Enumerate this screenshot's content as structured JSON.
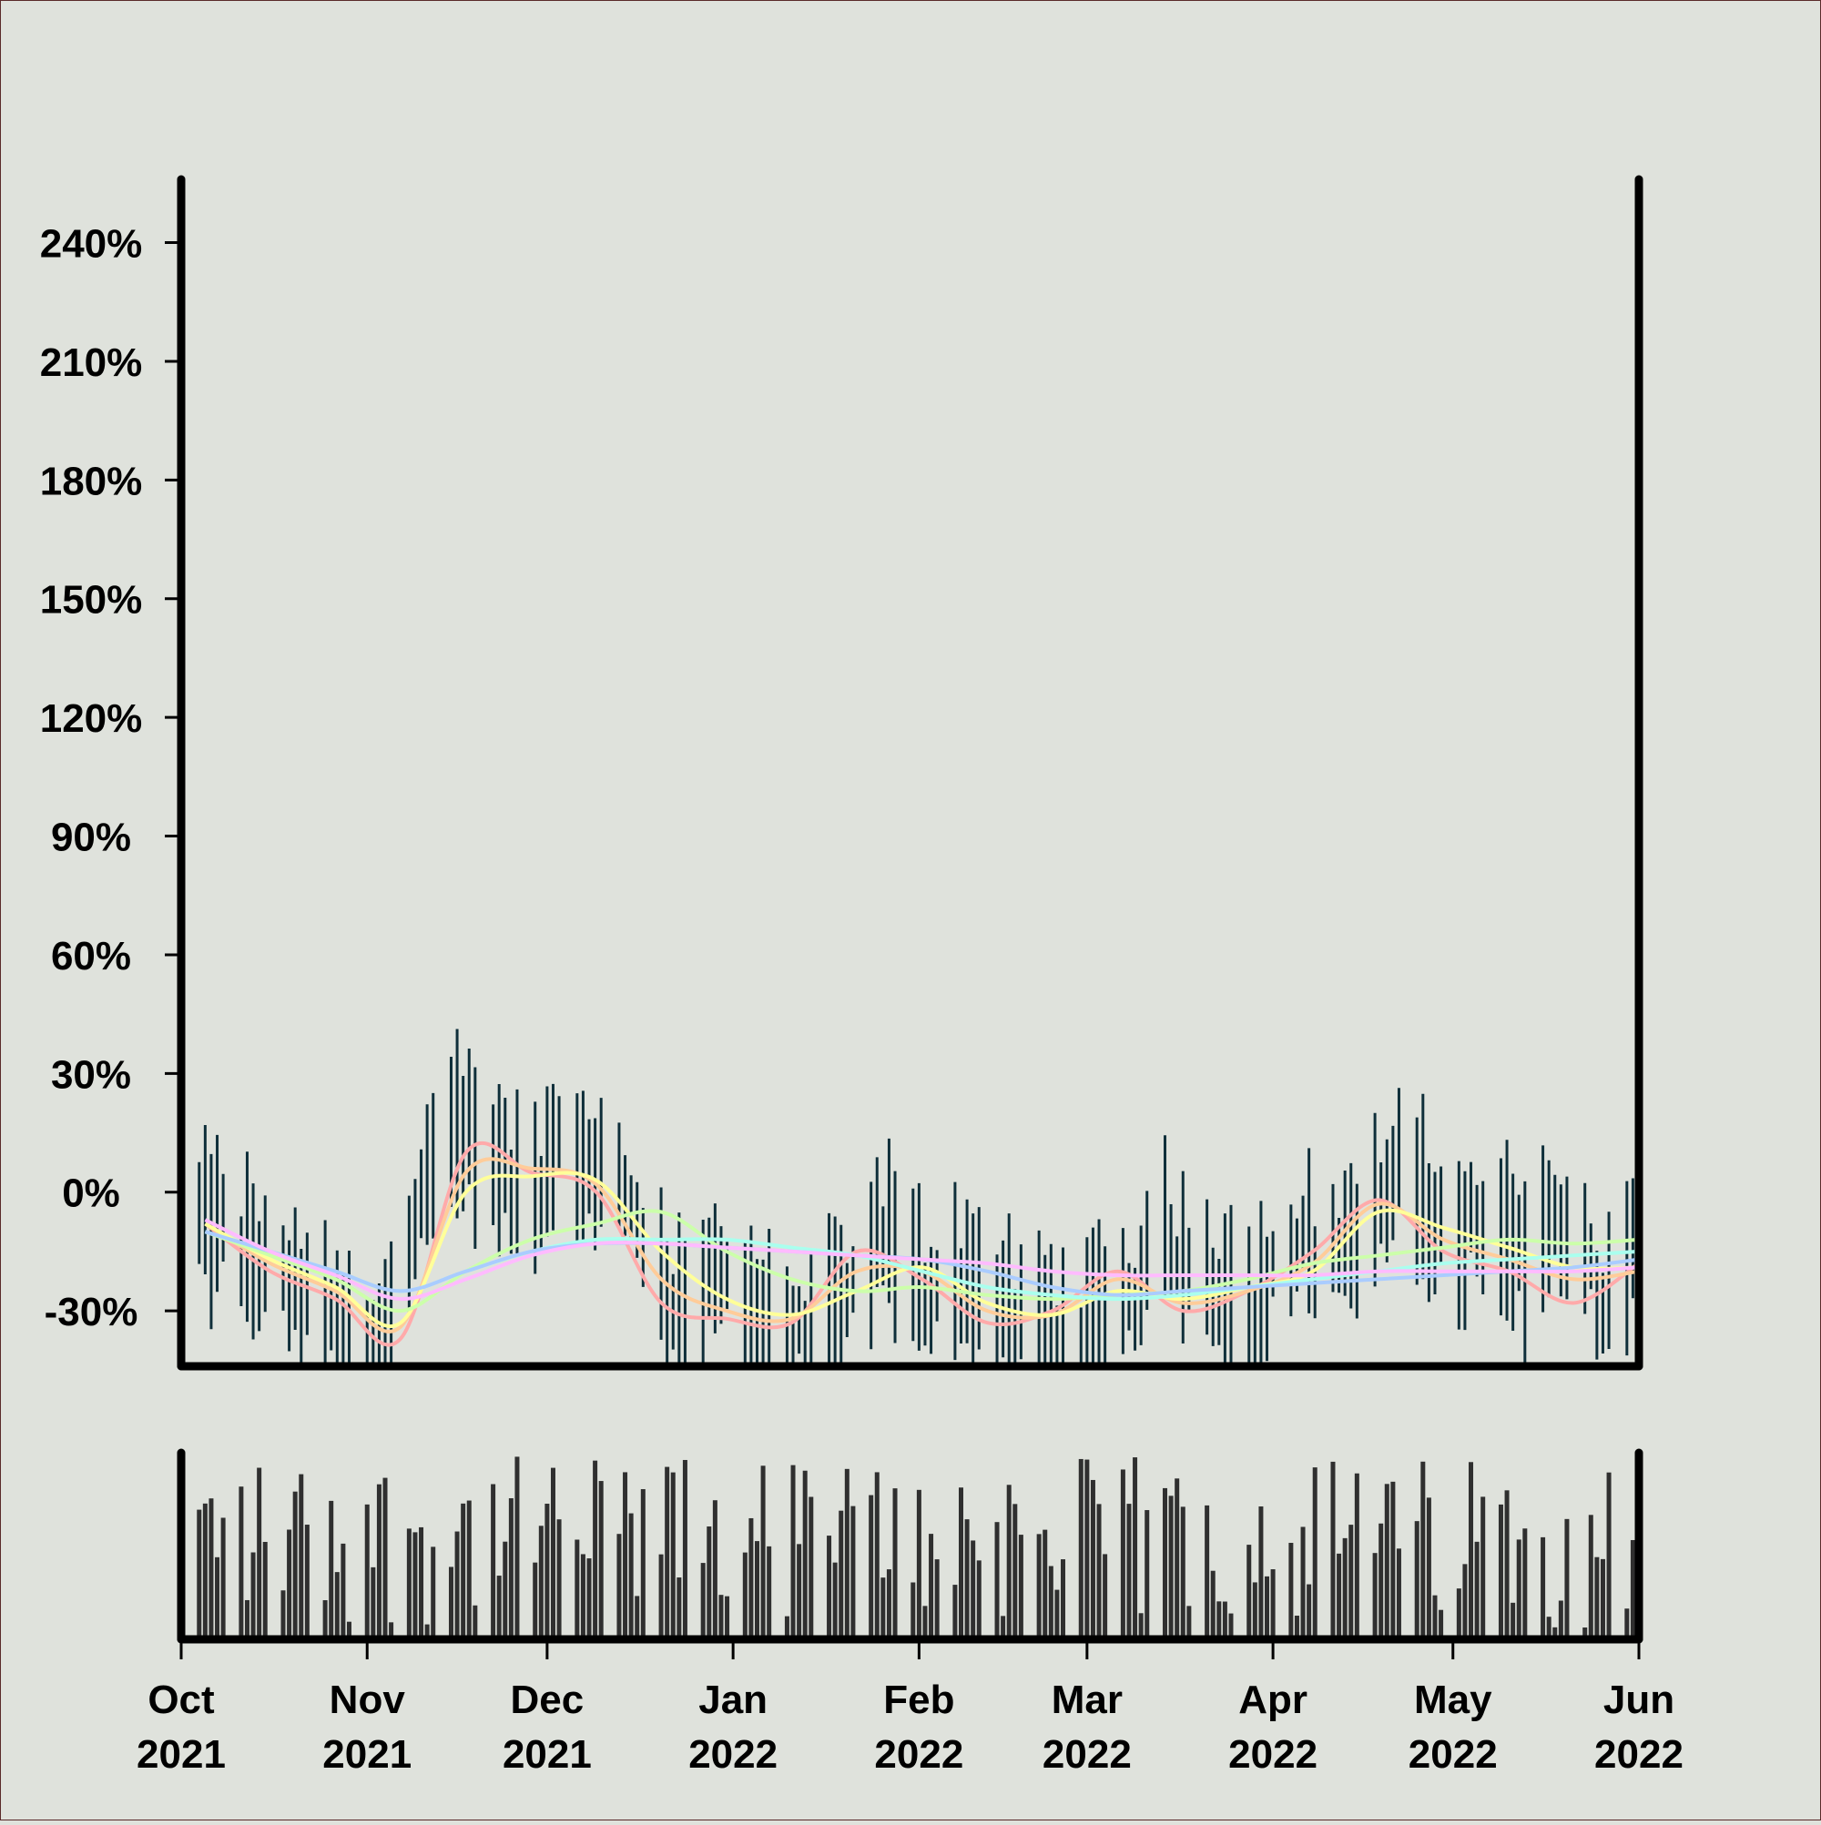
{
  "chart_data": {
    "type": "line",
    "title": "",
    "xlabel": "",
    "ylabel": "",
    "x_range": [
      "2021-10-01",
      "2022-06-01"
    ],
    "x_ticks": [
      {
        "date": "2021-10-01",
        "month": "Oct",
        "year": "2021"
      },
      {
        "date": "2021-11-01",
        "month": "Nov",
        "year": "2021"
      },
      {
        "date": "2021-12-01",
        "month": "Dec",
        "year": "2021"
      },
      {
        "date": "2022-01-01",
        "month": "Jan",
        "year": "2022"
      },
      {
        "date": "2022-02-01",
        "month": "Feb",
        "year": "2022"
      },
      {
        "date": "2022-03-01",
        "month": "Mar",
        "year": "2022"
      },
      {
        "date": "2022-04-01",
        "month": "Apr",
        "year": "2022"
      },
      {
        "date": "2022-05-01",
        "month": "May",
        "year": "2022"
      },
      {
        "date": "2022-06-01",
        "month": "Jun",
        "year": "2022"
      }
    ],
    "y_ticks": [
      {
        "value": 240,
        "label": "240%"
      },
      {
        "value": 210,
        "label": "210%"
      },
      {
        "value": 180,
        "label": "180%"
      },
      {
        "value": 150,
        "label": "150%"
      },
      {
        "value": 120,
        "label": "120%"
      },
      {
        "value": 90,
        "label": "90%"
      },
      {
        "value": 60,
        "label": "60%"
      },
      {
        "value": 30,
        "label": "30%"
      },
      {
        "value": 0,
        "label": "0%"
      },
      {
        "value": -30,
        "label": "-30%"
      }
    ],
    "ylim": [
      -44,
      256
    ],
    "grid": false,
    "legend": "none",
    "colors": {
      "background": "#dfe2dc",
      "axes": "#000000",
      "ohlc_bars": "#0f2f3a",
      "volume_bars": "#2f2f2f",
      "series": [
        "#ffaaaa",
        "#ffcc99",
        "#ffff99",
        "#ccffaa",
        "#aaffee",
        "#aaccff",
        "#ffbbff"
      ]
    },
    "price_anchors": [
      {
        "date": "2021-10-01",
        "value": -5
      },
      {
        "date": "2021-10-08",
        "value": -10
      },
      {
        "date": "2021-10-15",
        "value": -20
      },
      {
        "date": "2021-10-22",
        "value": -27
      },
      {
        "date": "2021-10-29",
        "value": -35
      },
      {
        "date": "2021-11-05",
        "value": -33
      },
      {
        "date": "2021-11-12",
        "value": 5
      },
      {
        "date": "2021-11-17",
        "value": 16
      },
      {
        "date": "2021-11-22",
        "value": 10
      },
      {
        "date": "2021-11-28",
        "value": -3
      },
      {
        "date": "2021-12-03",
        "value": 12
      },
      {
        "date": "2021-12-08",
        "value": 8
      },
      {
        "date": "2021-12-15",
        "value": -2
      },
      {
        "date": "2021-12-22",
        "value": -28
      },
      {
        "date": "2021-12-29",
        "value": -22
      },
      {
        "date": "2022-01-05",
        "value": -30
      },
      {
        "date": "2022-01-12",
        "value": -38
      },
      {
        "date": "2022-01-20",
        "value": -28
      },
      {
        "date": "2022-01-26",
        "value": -10
      },
      {
        "date": "2022-02-02",
        "value": -25
      },
      {
        "date": "2022-02-09",
        "value": -20
      },
      {
        "date": "2022-02-16",
        "value": -32
      },
      {
        "date": "2022-02-23",
        "value": -35
      },
      {
        "date": "2022-03-02",
        "value": -32
      },
      {
        "date": "2022-03-09",
        "value": -25
      },
      {
        "date": "2022-03-14",
        "value": -12
      },
      {
        "date": "2022-03-21",
        "value": -20
      },
      {
        "date": "2022-03-28",
        "value": -30
      },
      {
        "date": "2022-04-04",
        "value": -15
      },
      {
        "date": "2022-04-11",
        "value": -15
      },
      {
        "date": "2022-04-18",
        "value": -5
      },
      {
        "date": "2022-04-22",
        "value": 5
      },
      {
        "date": "2022-04-29",
        "value": -10
      },
      {
        "date": "2022-05-06",
        "value": -8
      },
      {
        "date": "2022-05-13",
        "value": -15
      },
      {
        "date": "2022-05-20",
        "value": -10
      },
      {
        "date": "2022-05-27",
        "value": -28
      },
      {
        "date": "2022-05-31",
        "value": -15
      }
    ],
    "series": [
      {
        "values": [
          -8,
          -20,
          -27,
          -37,
          10,
          5,
          0,
          -28,
          -32,
          -33,
          -15,
          -22,
          -33,
          -30,
          -20,
          -30,
          -25,
          -15,
          -2,
          -15,
          -20,
          -28,
          -18
        ]
      },
      {
        "values": [
          -8,
          -18,
          -25,
          -34,
          5,
          6,
          2,
          -22,
          -30,
          -32,
          -20,
          -20,
          -30,
          -31,
          -22,
          -28,
          -25,
          -18,
          -3,
          -12,
          -17,
          -22,
          -20
        ]
      },
      {
        "values": [
          -8,
          -17,
          -24,
          -33,
          0,
          4,
          3,
          -15,
          -27,
          -31,
          -25,
          -19,
          -28,
          -31,
          -25,
          -27,
          -24,
          -20,
          -5,
          -9,
          -14,
          -19,
          -19
        ]
      },
      {
        "values": [
          -10,
          -16,
          -22,
          -30,
          -20,
          -12,
          -8,
          -5,
          -15,
          -22,
          -25,
          -24,
          -26,
          -27,
          -26,
          -25,
          -22,
          -18,
          -16,
          -14,
          -12,
          -13,
          -12
        ]
      },
      {
        "values": [
          -10,
          -15,
          -20,
          -25,
          -20,
          -15,
          -12,
          -12,
          -12,
          -14,
          -16,
          -20,
          -24,
          -26,
          -27,
          -26,
          -24,
          -22,
          -20,
          -18,
          -17,
          -16,
          -15
        ]
      },
      {
        "values": [
          -10,
          -15,
          -20,
          -25,
          -20,
          -15,
          -13,
          -13,
          -14,
          -15,
          -16,
          -17,
          -20,
          -24,
          -26,
          -25,
          -24,
          -23,
          -22,
          -21,
          -20,
          -19,
          -17
        ]
      },
      {
        "values": [
          -7,
          -15,
          -21,
          -27,
          -22,
          -16,
          -13,
          -13,
          -14,
          -15,
          -16,
          -17,
          -18,
          -20,
          -21,
          -21,
          -21,
          -21,
          -20,
          -20,
          -20,
          -20,
          -19
        ]
      }
    ],
    "volume": {
      "relative_range": [
        0.05,
        1.0
      ],
      "axis_ticks": "none"
    }
  }
}
